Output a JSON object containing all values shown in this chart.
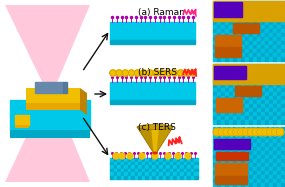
{
  "bg_color": "#ffffff",
  "labels": [
    "(a) Raman",
    "(b) SERS",
    "(c) TERS"
  ],
  "label_color": "#000000",
  "label_fontsize": 6.5,
  "cyan": "#00c8e8",
  "cyan_dark": "#00a8c8",
  "cyan_bg": "#00b8d8",
  "yellow": "#f0c000",
  "yellow2": "#e8a800",
  "gold_dark": "#c08000",
  "purple": "#5500bb",
  "orange": "#cc6600",
  "orange2": "#dd7700",
  "pink_beam": "#ffb0cc",
  "wave_color": "#ff1493",
  "wave_color2": "#ff4040",
  "arrow_color": "#111111",
  "mol_color": "#cc00bb",
  "mol_head": "#aa00aa",
  "blue_sample": "#6688aa",
  "tip_yellow": "#e8b800",
  "tip_dark": "#987000",
  "tip_red": "#cc2200",
  "panel_yellow_bg": "#e8a800",
  "panel_cyan_a": "#00c0e0",
  "panel_cyan_b": "#00a8cc"
}
